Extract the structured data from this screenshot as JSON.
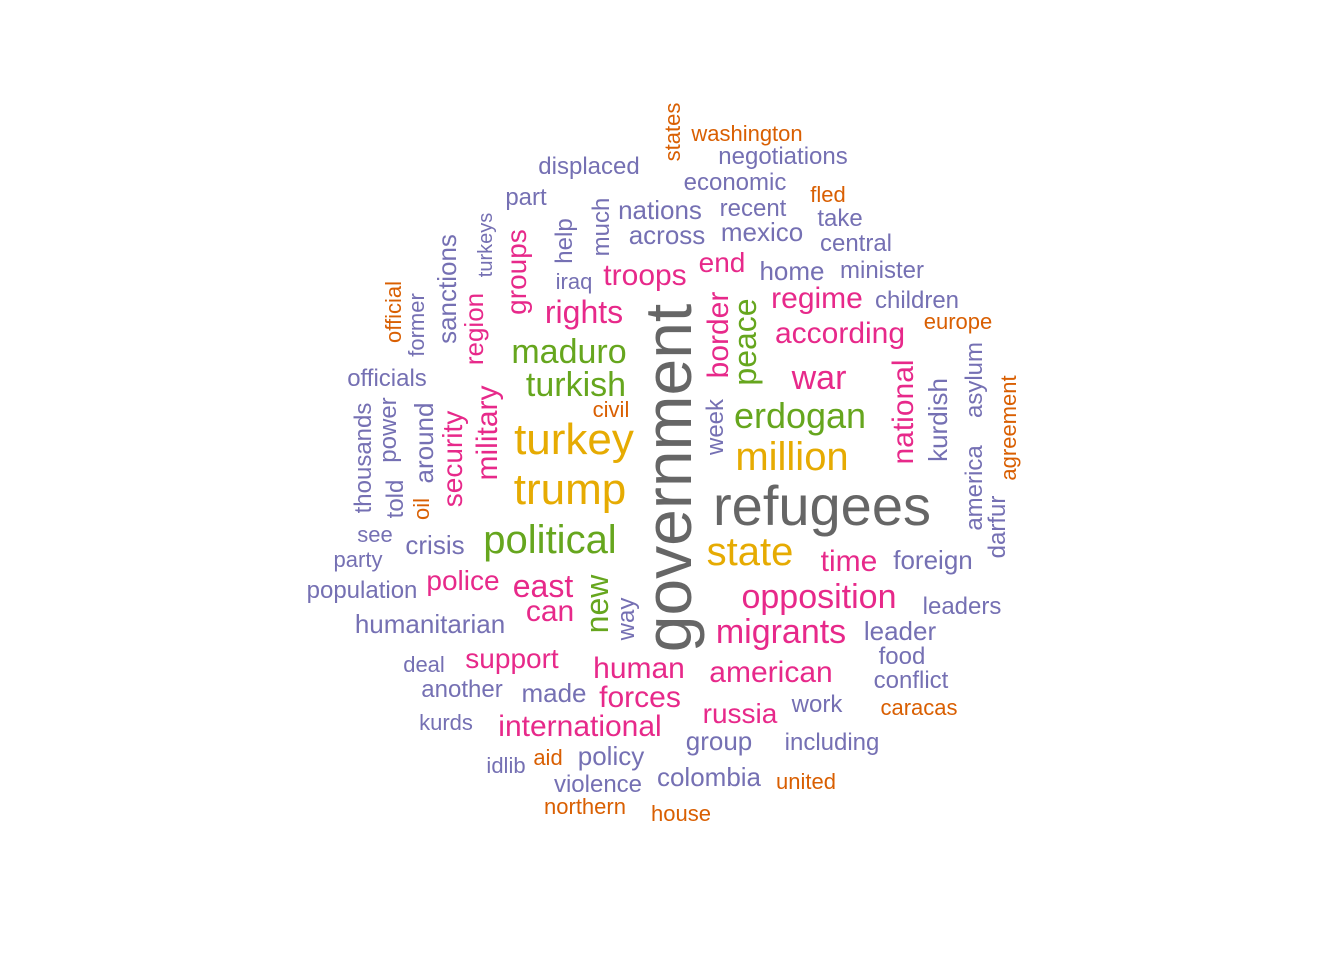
{
  "palette": {
    "gray": "#666666",
    "gold": "#e6ab02",
    "green": "#66a61e",
    "pink": "#e7298a",
    "purple": "#7570b3",
    "orange": "#d95f02"
  },
  "words": [
    {
      "text": "government"
    },
    {
      "text": "refugees"
    },
    {
      "text": "turkey"
    },
    {
      "text": "trump"
    },
    {
      "text": "state"
    },
    {
      "text": "million"
    },
    {
      "text": "political"
    },
    {
      "text": "erdogan"
    },
    {
      "text": "maduro"
    },
    {
      "text": "turkish"
    },
    {
      "text": "peace"
    },
    {
      "text": "new"
    },
    {
      "text": "opposition"
    },
    {
      "text": "migrants"
    },
    {
      "text": "american"
    },
    {
      "text": "east"
    },
    {
      "text": "war"
    },
    {
      "text": "rights"
    },
    {
      "text": "according"
    },
    {
      "text": "support"
    },
    {
      "text": "international"
    },
    {
      "text": "human"
    },
    {
      "text": "forces"
    },
    {
      "text": "russia"
    },
    {
      "text": "police"
    },
    {
      "text": "can"
    },
    {
      "text": "time"
    },
    {
      "text": "regime"
    },
    {
      "text": "troops"
    },
    {
      "text": "end"
    },
    {
      "text": "border"
    },
    {
      "text": "national"
    },
    {
      "text": "military"
    },
    {
      "text": "security"
    },
    {
      "text": "groups"
    },
    {
      "text": "region"
    },
    {
      "text": "humanitarian"
    },
    {
      "text": "policy"
    },
    {
      "text": "group"
    },
    {
      "text": "colombia"
    },
    {
      "text": "made"
    },
    {
      "text": "crisis"
    },
    {
      "text": "foreign"
    },
    {
      "text": "leader"
    },
    {
      "text": "kurdish"
    },
    {
      "text": "around"
    },
    {
      "text": "across"
    },
    {
      "text": "nations"
    },
    {
      "text": "mexico"
    },
    {
      "text": "home"
    },
    {
      "text": "minister"
    },
    {
      "text": "officials"
    },
    {
      "text": "sanctions"
    },
    {
      "text": "displaced"
    },
    {
      "text": "thousands"
    },
    {
      "text": "power"
    },
    {
      "text": "told"
    },
    {
      "text": "work"
    },
    {
      "text": "conflict"
    },
    {
      "text": "including"
    },
    {
      "text": "another"
    },
    {
      "text": "leaders"
    },
    {
      "text": "population"
    },
    {
      "text": "children"
    },
    {
      "text": "economic"
    },
    {
      "text": "recent"
    },
    {
      "text": "negotiations"
    },
    {
      "text": "central"
    },
    {
      "text": "food"
    },
    {
      "text": "violence"
    },
    {
      "text": "asylum"
    },
    {
      "text": "america"
    },
    {
      "text": "darfur"
    },
    {
      "text": "help"
    },
    {
      "text": "much"
    },
    {
      "text": "part"
    },
    {
      "text": "take"
    },
    {
      "text": "week"
    },
    {
      "text": "way"
    },
    {
      "text": "former"
    },
    {
      "text": "deal"
    },
    {
      "text": "kurds"
    },
    {
      "text": "idlib"
    },
    {
      "text": "party"
    },
    {
      "text": "see"
    },
    {
      "text": "turkeys"
    },
    {
      "text": "iraq"
    },
    {
      "text": "washington"
    },
    {
      "text": "states"
    },
    {
      "text": "fled"
    },
    {
      "text": "europe"
    },
    {
      "text": "official"
    },
    {
      "text": "civil"
    },
    {
      "text": "oil"
    },
    {
      "text": "agreement"
    },
    {
      "text": "caracas"
    },
    {
      "text": "united"
    },
    {
      "text": "aid"
    },
    {
      "text": "northern"
    },
    {
      "text": "house"
    }
  ]
}
